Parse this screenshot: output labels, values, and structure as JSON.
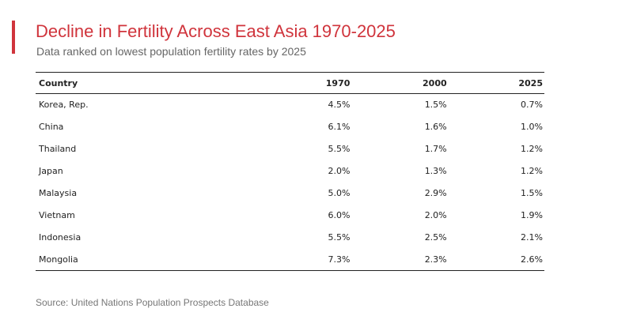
{
  "colors": {
    "accent": "#d0343c",
    "subtitle": "#666666",
    "source": "#777777",
    "rule": "#222222"
  },
  "title": "Decline in Fertility Across East Asia 1970-2025",
  "subtitle": "Data ranked on lowest population fertility rates by 2025",
  "source": "Source: United Nations Population Prospects Database",
  "chart_data": {
    "type": "table",
    "columns": [
      "Country",
      "1970",
      "2000",
      "2025"
    ],
    "rows": [
      [
        "Korea, Rep.",
        "4.5%",
        "1.5%",
        "0.7%"
      ],
      [
        "China",
        "6.1%",
        "1.6%",
        "1.0%"
      ],
      [
        "Thailand",
        "5.5%",
        "1.7%",
        "1.2%"
      ],
      [
        "Japan",
        "2.0%",
        "1.3%",
        "1.2%"
      ],
      [
        "Malaysia",
        "5.0%",
        "2.9%",
        "1.5%"
      ],
      [
        "Vietnam",
        "6.0%",
        "2.0%",
        "1.9%"
      ],
      [
        "Indonesia",
        "5.5%",
        "2.5%",
        "2.1%"
      ],
      [
        "Mongolia",
        "7.3%",
        "2.3%",
        "2.6%"
      ]
    ]
  }
}
